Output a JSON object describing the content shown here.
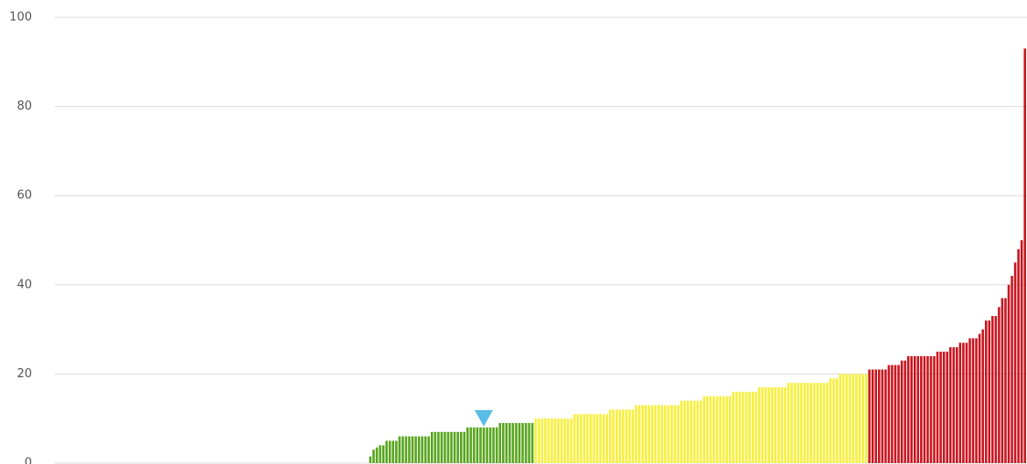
{
  "chart_data": {
    "type": "bar",
    "ylim": [
      0,
      100
    ],
    "yticks": [
      0,
      20,
      40,
      60,
      80,
      100
    ],
    "grid": true,
    "marker_index": 132,
    "marker_color": "#5bbde6",
    "series": [
      {
        "color": "#58a51e",
        "values": [
          0,
          0,
          0,
          0,
          0,
          0,
          0,
          0,
          0,
          0,
          0,
          0,
          0,
          0,
          0,
          0,
          0,
          0,
          0,
          0,
          0,
          0,
          0,
          0,
          0,
          0,
          0,
          0,
          0,
          0,
          0,
          0,
          0,
          0,
          0,
          0,
          0,
          0,
          0,
          0,
          0,
          0,
          0,
          0,
          0,
          0,
          0,
          0,
          0,
          0,
          0,
          0,
          0,
          0,
          0,
          0,
          0,
          0,
          0,
          0,
          0,
          0,
          0,
          0,
          0,
          0,
          0,
          0,
          0,
          0,
          0,
          0,
          0,
          0,
          0,
          0,
          0,
          0,
          0,
          0,
          0,
          0,
          0,
          0,
          0,
          0,
          0,
          0,
          0,
          0,
          0,
          0,
          0,
          0,
          0,
          0,
          0,
          1.5,
          3,
          3.5,
          4,
          4,
          5,
          5,
          5,
          5,
          6,
          6,
          6,
          6,
          6,
          6,
          6,
          6,
          6,
          6,
          7,
          7,
          7,
          7,
          7,
          7,
          7,
          7,
          7,
          7,
          7,
          8,
          8,
          8,
          8,
          8,
          8,
          8,
          8,
          8,
          8,
          9,
          9,
          9,
          9,
          9,
          9,
          9,
          9,
          9,
          9,
          9,
          null,
          null,
          null,
          null,
          null,
          null,
          null,
          null,
          null,
          null,
          null,
          null,
          null,
          null,
          null,
          null,
          null,
          null,
          null,
          null,
          null,
          null,
          null,
          null,
          null,
          null,
          null,
          null,
          null,
          null,
          null,
          null,
          null,
          null,
          null,
          null,
          null,
          null,
          null,
          null,
          null,
          null,
          null,
          null,
          null,
          null,
          null,
          null,
          null,
          null,
          null,
          null,
          null,
          null,
          null,
          null,
          null,
          null,
          null,
          null,
          null,
          null,
          null,
          null,
          null,
          null,
          null,
          null,
          null,
          null,
          null,
          null,
          null,
          null,
          null,
          null,
          null,
          null,
          null,
          null,
          null,
          null,
          null,
          null,
          null,
          null,
          null,
          null,
          null,
          null,
          null,
          null,
          null,
          null,
          null,
          null,
          null,
          null,
          null,
          null,
          null,
          null,
          null,
          null,
          null,
          null,
          null,
          null,
          null,
          null,
          null,
          null,
          null,
          null,
          null,
          null,
          null,
          null,
          null,
          null,
          null,
          null,
          null,
          null,
          null,
          null,
          null,
          null,
          null,
          null,
          null,
          null,
          null,
          null,
          null,
          null,
          null,
          null,
          null,
          null,
          null,
          null,
          null,
          null,
          null,
          null,
          null,
          null,
          null,
          null,
          null,
          null
        ]
      },
      {
        "color": "#f7ef3c",
        "values": [
          null,
          null,
          null,
          null,
          null,
          null,
          null,
          null,
          null,
          null,
          null,
          null,
          null,
          null,
          null,
          null,
          null,
          null,
          null,
          null,
          null,
          null,
          null,
          null,
          null,
          null,
          null,
          null,
          null,
          null,
          null,
          null,
          null,
          null,
          null,
          null,
          null,
          null,
          null,
          null,
          null,
          null,
          null,
          null,
          null,
          null,
          null,
          null,
          null,
          null,
          null,
          null,
          null,
          null,
          null,
          null,
          null,
          null,
          null,
          null,
          null,
          null,
          null,
          null,
          null,
          null,
          null,
          null,
          null,
          null,
          null,
          null,
          null,
          null,
          null,
          null,
          null,
          null,
          null,
          null,
          null,
          null,
          null,
          null,
          null,
          null,
          null,
          null,
          null,
          null,
          null,
          null,
          null,
          null,
          null,
          null,
          null,
          null,
          null,
          null,
          null,
          null,
          null,
          null,
          null,
          null,
          null,
          null,
          null,
          null,
          null,
          null,
          null,
          null,
          null,
          null,
          null,
          null,
          null,
          null,
          null,
          null,
          null,
          null,
          null,
          null,
          null,
          null,
          null,
          null,
          null,
          null,
          null,
          null,
          null,
          null,
          null,
          null,
          null,
          null,
          null,
          null,
          null,
          null,
          null,
          null,
          null,
          null,
          10,
          10,
          10,
          10,
          10,
          10,
          10,
          10,
          10,
          10,
          10,
          10,
          11,
          11,
          11,
          11,
          11,
          11,
          11,
          11,
          11,
          11,
          11,
          12,
          12,
          12,
          12,
          12,
          12,
          12,
          12,
          13,
          13,
          13,
          13,
          13,
          13,
          13,
          13,
          13,
          13,
          13,
          13,
          13,
          13,
          14,
          14,
          14,
          14,
          14,
          14,
          14,
          15,
          15,
          15,
          15,
          15,
          15,
          15,
          15,
          15,
          16,
          16,
          16,
          16,
          16,
          16,
          16,
          16,
          17,
          17,
          17,
          17,
          17,
          17,
          17,
          17,
          17,
          18,
          18,
          18,
          18,
          18,
          18,
          18,
          18,
          18,
          18,
          18,
          18,
          18,
          19,
          19,
          19,
          20,
          20,
          20,
          20,
          20,
          20,
          20,
          20,
          20,
          null,
          null,
          null,
          null,
          null,
          null,
          null,
          null,
          null,
          null,
          null,
          null,
          null,
          null,
          null,
          null,
          null,
          null,
          null,
          null,
          null,
          null,
          null,
          null,
          null,
          null,
          null,
          null,
          null,
          null,
          null,
          null,
          null,
          null,
          null,
          null,
          null,
          null,
          null,
          null,
          null,
          null,
          null,
          null,
          null,
          null,
          null,
          null,
          null
        ]
      },
      {
        "color": "#c8161f",
        "values": [
          null,
          null,
          null,
          null,
          null,
          null,
          null,
          null,
          null,
          null,
          null,
          null,
          null,
          null,
          null,
          null,
          null,
          null,
          null,
          null,
          null,
          null,
          null,
          null,
          null,
          null,
          null,
          null,
          null,
          null,
          null,
          null,
          null,
          null,
          null,
          null,
          null,
          null,
          null,
          null,
          null,
          null,
          null,
          null,
          null,
          null,
          null,
          null,
          null,
          null,
          null,
          null,
          null,
          null,
          null,
          null,
          null,
          null,
          null,
          null,
          null,
          null,
          null,
          null,
          null,
          null,
          null,
          null,
          null,
          null,
          null,
          null,
          null,
          null,
          null,
          null,
          null,
          null,
          null,
          null,
          null,
          null,
          null,
          null,
          null,
          null,
          null,
          null,
          null,
          null,
          null,
          null,
          null,
          null,
          null,
          null,
          null,
          null,
          null,
          null,
          null,
          null,
          null,
          null,
          null,
          null,
          null,
          null,
          null,
          null,
          null,
          null,
          null,
          null,
          null,
          null,
          null,
          null,
          null,
          null,
          null,
          null,
          null,
          null,
          null,
          null,
          null,
          null,
          null,
          null,
          null,
          null,
          null,
          null,
          null,
          null,
          null,
          null,
          null,
          null,
          null,
          null,
          null,
          null,
          null,
          null,
          null,
          null,
          null,
          null,
          null,
          null,
          null,
          null,
          null,
          null,
          null,
          null,
          null,
          null,
          null,
          null,
          null,
          null,
          null,
          null,
          null,
          null,
          null,
          null,
          null,
          null,
          null,
          null,
          null,
          null,
          null,
          null,
          null,
          null,
          null,
          null,
          null,
          null,
          null,
          null,
          null,
          null,
          null,
          null,
          null,
          null,
          null,
          null,
          null,
          null,
          null,
          null,
          null,
          null,
          null,
          null,
          null,
          null,
          null,
          null,
          null,
          null,
          null,
          null,
          null,
          null,
          null,
          null,
          null,
          null,
          null,
          null,
          null,
          null,
          null,
          null,
          null,
          null,
          null,
          null,
          null,
          null,
          null,
          null,
          null,
          null,
          null,
          null,
          null,
          null,
          null,
          null,
          null,
          null,
          null,
          null,
          null,
          null,
          null,
          null,
          null,
          null,
          null,
          null,
          null,
          21,
          21,
          21,
          21,
          21,
          21,
          22,
          22,
          22,
          22,
          23,
          23,
          24,
          24,
          24,
          24,
          24,
          24,
          24,
          24,
          24,
          25,
          25,
          25,
          25,
          26,
          26,
          26,
          27,
          27,
          27,
          28,
          28,
          28,
          29,
          30,
          32,
          32,
          33,
          33,
          35,
          37,
          37,
          40,
          42,
          45,
          48,
          50,
          93
        ]
      }
    ]
  }
}
